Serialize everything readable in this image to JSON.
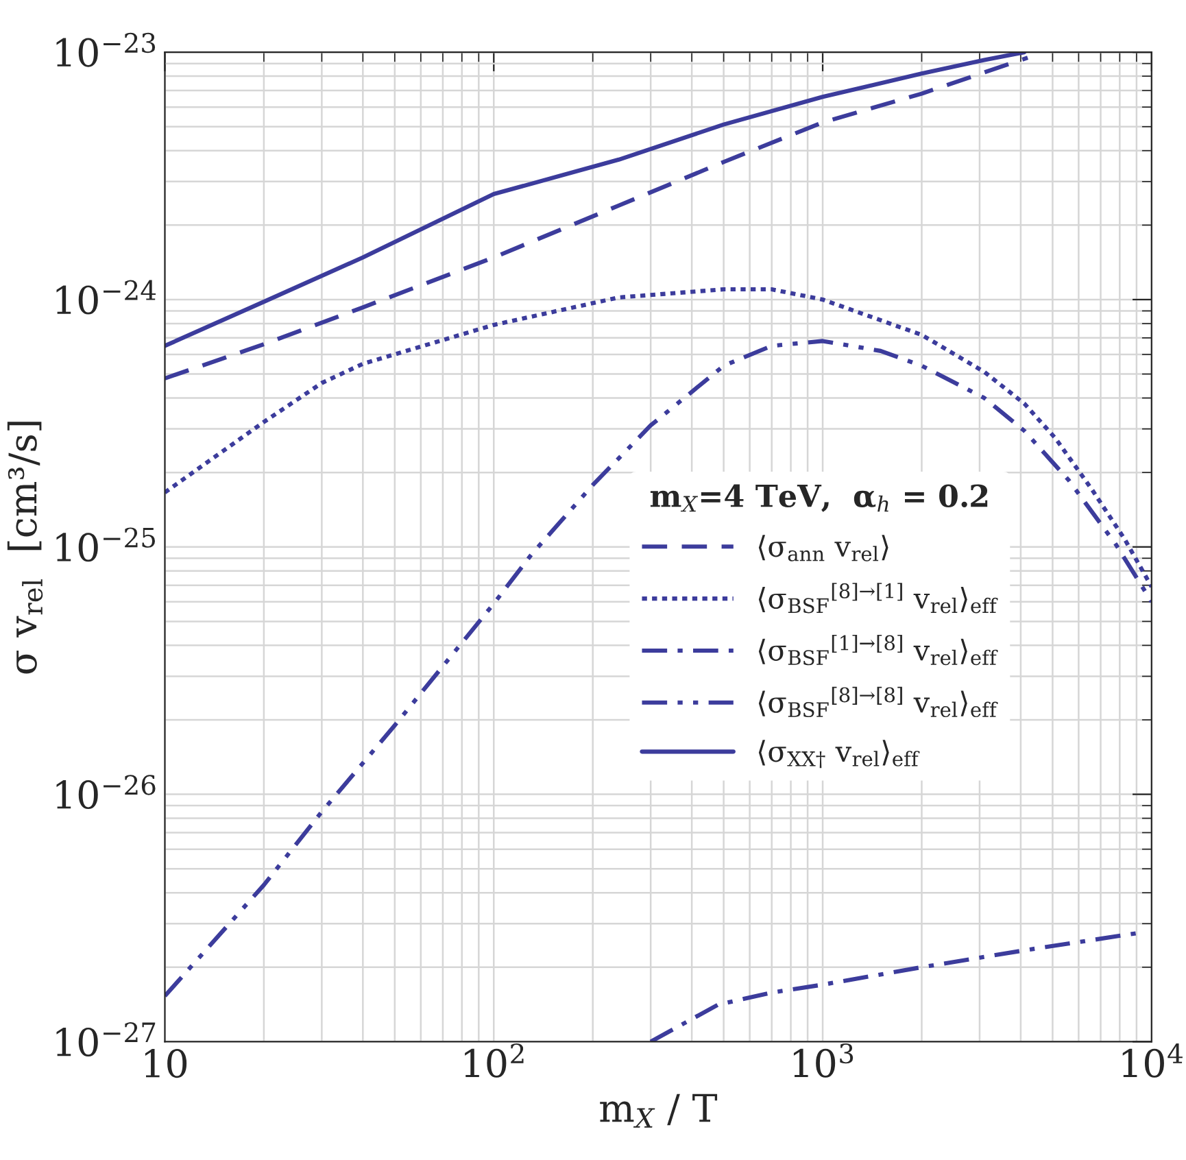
{
  "chart_data": {
    "type": "line",
    "xlabel": "m$_{X}$ / T",
    "ylabel": "σ v$_{rel}$  [cm³/s]",
    "legend_title": "m$_{X}$=4 TeV,  α$_{h}$ = 0.2",
    "log": "xy",
    "grid": true,
    "legend": "right",
    "xlim": [
      10,
      10000
    ],
    "ylim": [
      1e-27,
      1e-23
    ],
    "xticks": [
      10,
      {
        "value": 100,
        "label": "10$^{2}$"
      },
      {
        "value": 1000,
        "label": "10$^{3}$"
      },
      {
        "value": 10000,
        "label": "10$^{4}$"
      }
    ],
    "yticks": [
      {
        "value": 1e-27,
        "label": "10$^{−27}$"
      },
      {
        "value": 1e-26,
        "label": "10$^{−26}$"
      },
      {
        "value": 1e-25,
        "label": "10$^{−25}$"
      },
      {
        "value": 1e-24,
        "label": "10$^{−24}$"
      },
      {
        "value": 1e-23,
        "label": "10$^{−23}$"
      }
    ],
    "series": [
      {
        "name": "⟨σ$_{ann}$ v$_{rel}$⟩",
        "color": "#3c3c9c",
        "line_style": "dashed",
        "x": [
          10,
          20,
          40,
          100,
          240,
          500,
          1000,
          2000,
          4200
        ],
        "values": [
          4.8e-25,
          6.6e-25,
          9.3e-25,
          1.48e-24,
          2.4e-24,
          3.6e-24,
          5.2e-24,
          6.8e-24,
          9.5e-24
        ]
      },
      {
        "name": "⟨σ$_{BSF}$$^{[8]→[1]}$ v$_{rel}$⟩$_{eff}$",
        "color": "#3c3c9c",
        "line_style": "dotted",
        "x": [
          10,
          20,
          30,
          40,
          100,
          240,
          500,
          700,
          1000,
          2000,
          3100,
          4100,
          5100,
          6600,
          8300,
          10000
        ],
        "values": [
          1.66e-25,
          3.2e-25,
          4.6e-25,
          5.5e-25,
          7.9e-25,
          1.02e-24,
          1.1e-24,
          1.1e-24,
          1e-24,
          7.2e-25,
          5.1e-25,
          3.8e-25,
          2.75e-25,
          1.7e-25,
          1.07e-25,
          6.9e-26
        ]
      },
      {
        "name": "⟨σ$_{BSF}$$^{[1]→[8]}$ v$_{rel}$⟩$_{eff}$",
        "color": "#3c3c9c",
        "line_style": "dashdot",
        "x": [
          300,
          480,
          700,
          1000,
          2000,
          4100,
          9100
        ],
        "values": [
          1e-27,
          1.41e-27,
          1.58e-27,
          1.7e-27,
          2e-27,
          2.34e-27,
          2.75e-27
        ]
      },
      {
        "name": "⟨σ$_{BSF}$$^{[8]→[8]}$ v$_{rel}$⟩$_{eff}$",
        "color": "#3c3c9c",
        "line_style": "dashdotdot",
        "x": [
          10,
          20,
          30,
          50,
          100,
          130,
          200,
          300,
          500,
          700,
          1000,
          1500,
          2000,
          3100,
          4100,
          5600,
          7800,
          10000
        ],
        "values": [
          1.53e-27,
          4.3e-27,
          8.5e-27,
          1.9e-26,
          5.9e-26,
          9.3e-26,
          1.78e-25,
          3.1e-25,
          5.4e-25,
          6.5e-25,
          6.8e-25,
          6.2e-25,
          5.4e-25,
          4e-25,
          2.95e-25,
          1.86e-25,
          1.02e-25,
          6e-26
        ]
      },
      {
        "name": "⟨σ$_{XX†}$ v$_{rel}$⟩$_{eff}$",
        "color": "#3c3c9c",
        "line_style": "solid",
        "x": [
          10,
          20,
          40,
          100,
          240,
          500,
          1000,
          2000,
          3100,
          4100
        ],
        "values": [
          6.5e-25,
          9.8e-25,
          1.48e-24,
          2.67e-24,
          3.68e-24,
          5.1e-24,
          6.6e-24,
          8.2e-24,
          9.3e-24,
          1e-23
        ]
      }
    ]
  }
}
